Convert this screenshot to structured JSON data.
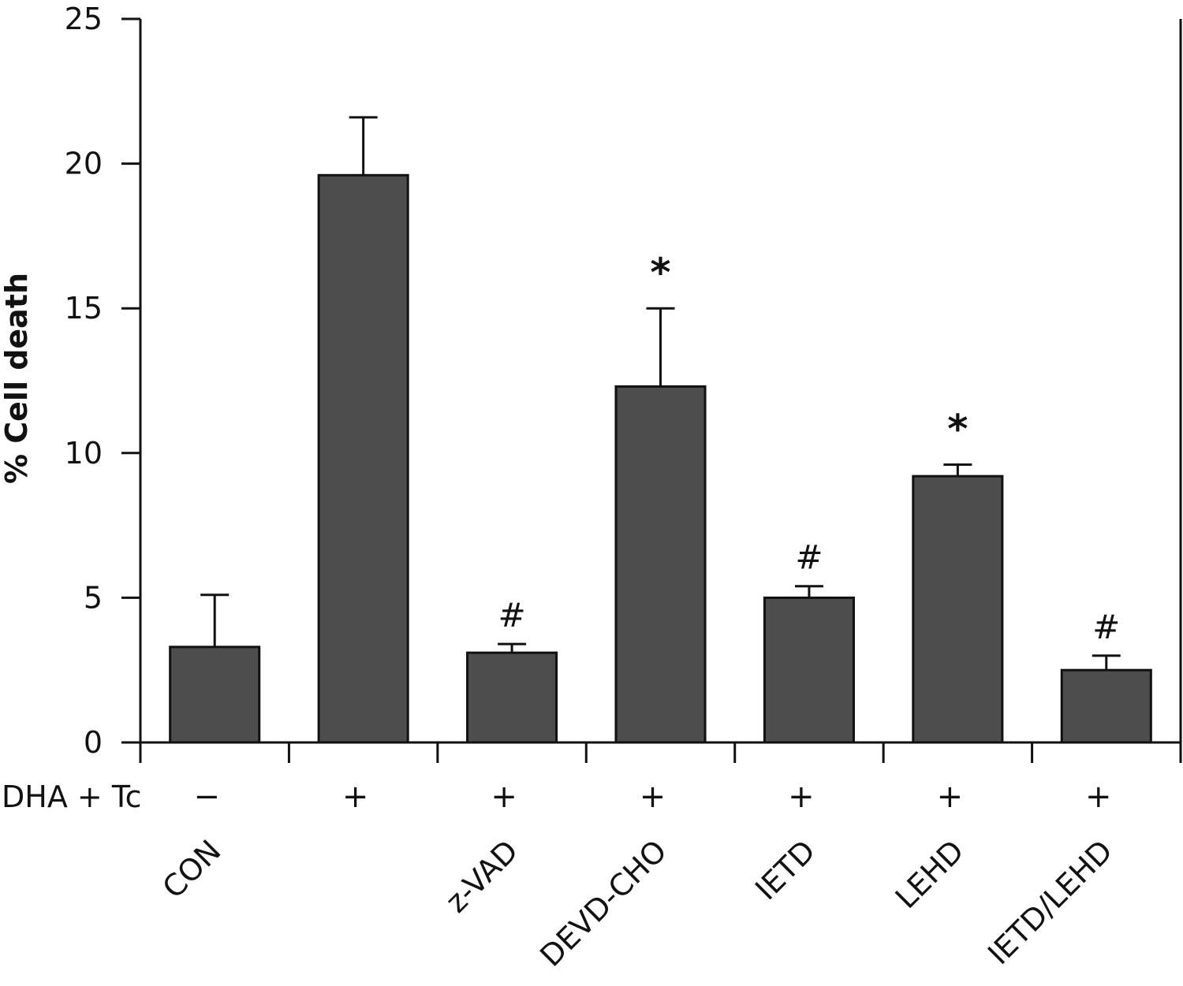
{
  "chart_data": {
    "type": "bar",
    "title": "",
    "xlabel": "",
    "ylabel": "% Cell death",
    "ylim": [
      0,
      25
    ],
    "yticks": [
      0,
      5,
      10,
      15,
      20,
      25
    ],
    "grid": false,
    "categories": [
      "CON",
      "",
      "z-VAD",
      "DEVD-CHO",
      "IETD",
      "LEHD",
      "IETD/LEHD"
    ],
    "values": [
      3.3,
      19.6,
      3.1,
      12.3,
      5.0,
      9.2,
      2.5
    ],
    "errors": [
      1.8,
      2.0,
      0.3,
      2.7,
      0.4,
      0.4,
      0.5
    ],
    "annotations": [
      "",
      "",
      "#",
      "*",
      "#",
      "*",
      "#"
    ],
    "treatment_row": {
      "label": "DHA + Tc",
      "symbols": [
        "−",
        "+",
        "+",
        "+",
        "+",
        "+",
        "+"
      ]
    },
    "bar_color": "#4d4d4d"
  }
}
